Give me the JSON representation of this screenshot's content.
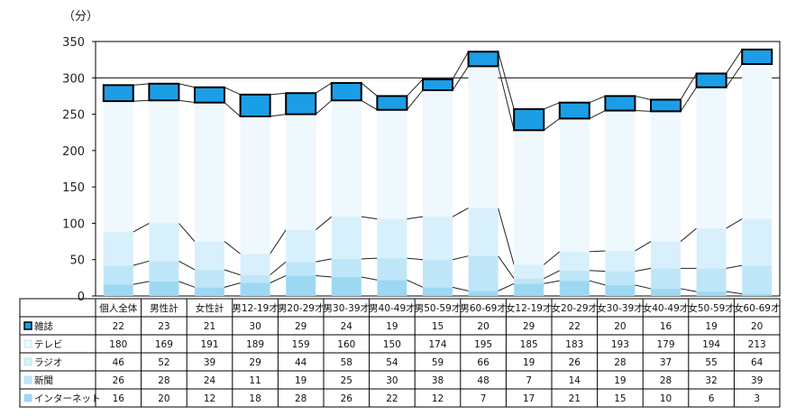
{
  "chart_data": {
    "type": "bar",
    "stacked": true,
    "unit": "（分）",
    "ylim": [
      0,
      350
    ],
    "yticks": [
      0,
      50,
      100,
      150,
      200,
      250,
      300,
      350
    ],
    "grid": "horizontal at 300",
    "categories": [
      "個人全体",
      "男性計",
      "女性計",
      "男12-19才",
      "男20-29才",
      "男30-39才",
      "男40-49才",
      "男50-59才",
      "男60-69才",
      "女12-19才",
      "女20-29才",
      "女30-39才",
      "女40-49才",
      "女50-59才",
      "女60-69才"
    ],
    "series": [
      {
        "name": "雑誌",
        "color": "#1c9ee6",
        "values": [
          22,
          23,
          21,
          30,
          29,
          24,
          19,
          15,
          20,
          29,
          22,
          20,
          16,
          19,
          20
        ]
      },
      {
        "name": "テレビ",
        "color": "#eef8fd",
        "values": [
          180,
          169,
          191,
          189,
          159,
          160,
          150,
          174,
          195,
          185,
          183,
          193,
          179,
          194,
          213
        ]
      },
      {
        "name": "ラジオ",
        "color": "#d8f0fb",
        "values": [
          46,
          52,
          39,
          29,
          44,
          58,
          54,
          59,
          66,
          19,
          26,
          28,
          37,
          55,
          64
        ]
      },
      {
        "name": "新聞",
        "color": "#bfe6f8",
        "values": [
          26,
          28,
          24,
          11,
          19,
          25,
          30,
          38,
          48,
          7,
          14,
          19,
          28,
          32,
          39
        ]
      },
      {
        "name": "インターネット",
        "color": "#9dd8f3",
        "values": [
          16,
          20,
          12,
          18,
          28,
          26,
          22,
          12,
          7,
          17,
          21,
          15,
          10,
          6,
          3
        ]
      }
    ],
    "legend_placement": "left of data table"
  }
}
